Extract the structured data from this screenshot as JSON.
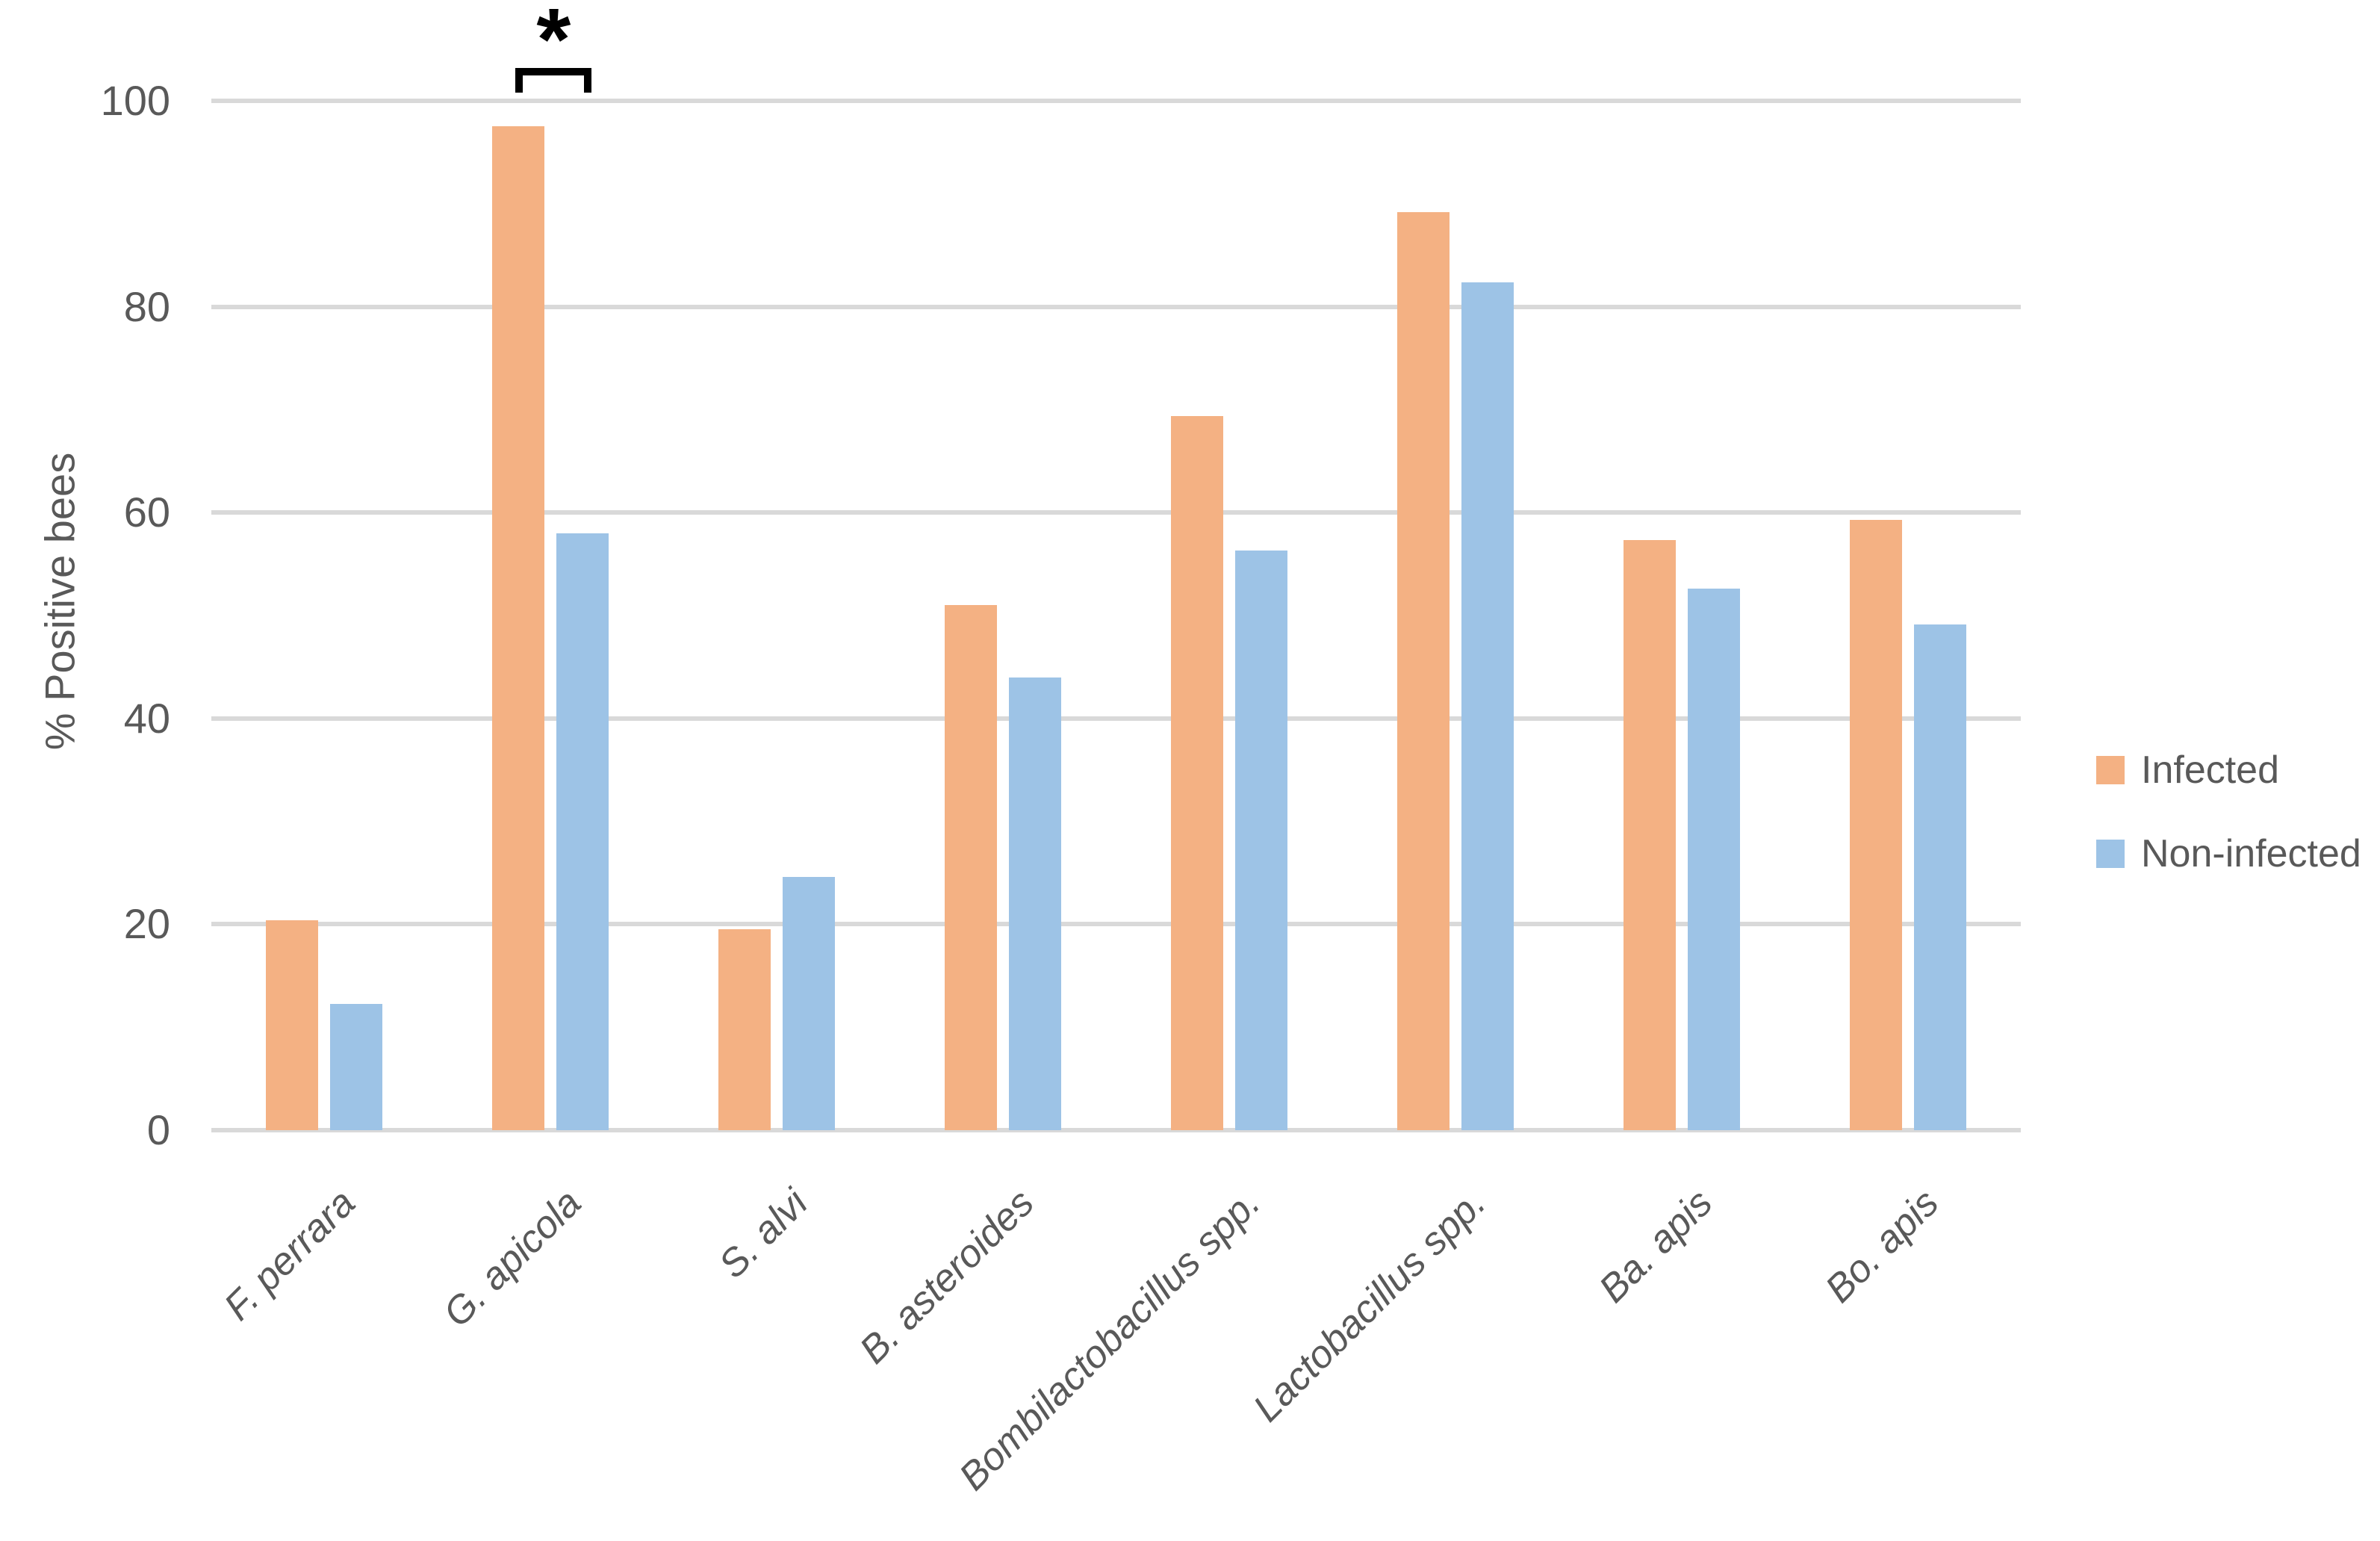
{
  "chart_data": {
    "type": "bar",
    "title": "",
    "xlabel": "",
    "ylabel": "% Positive bees",
    "ylim": [
      0,
      100
    ],
    "yticks": [
      0,
      20,
      40,
      60,
      80,
      100
    ],
    "grid": true,
    "legend_position": "right",
    "categories": [
      "F. perrara",
      "G. apicola",
      "S. alvi",
      "B. asteroides",
      "Bombilactobacillus spp.",
      "Lactobacillus spp.",
      "Ba. apis",
      "Bo. apis"
    ],
    "series": [
      {
        "name": "Infected",
        "color": "#F4B183",
        "values": [
          20.4,
          97.5,
          19.5,
          51.0,
          69.4,
          89.2,
          57.3,
          59.3
        ]
      },
      {
        "name": "Non-infected",
        "color": "#9DC3E6",
        "values": [
          12.3,
          58.0,
          24.6,
          44.0,
          56.3,
          82.4,
          52.6,
          49.1
        ]
      }
    ],
    "annotations": [
      {
        "type": "significance-bracket",
        "category": "G. apicola",
        "label": "*"
      }
    ]
  },
  "legend": {
    "items": [
      {
        "label": "Infected",
        "color": "#F4B183"
      },
      {
        "label": "Non-infected",
        "color": "#9DC3E6"
      }
    ]
  },
  "colors": {
    "infected": "#F4B183",
    "non_infected": "#9DC3E6",
    "gridline": "#D9D9D9",
    "text": "#595959",
    "annotation": "#000000",
    "background": "#FFFFFF"
  }
}
